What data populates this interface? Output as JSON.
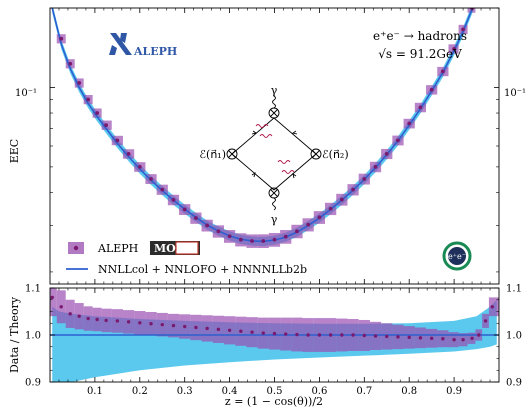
{
  "chart_data": [
    {
      "type": "line",
      "panel": "main",
      "ylabel": "EEC",
      "yscale": "log",
      "ylim_approx": [
        0.018,
        0.2
      ],
      "xlim": [
        0,
        1
      ],
      "ytick_label": "10⁻¹",
      "ytick_value": 0.1,
      "annotation_process": "e⁺e⁻ → hadrons",
      "annotation_energy": "√s = 91.2GeV",
      "logo_text": "ALEPH",
      "badge_text": "e⁺e⁻",
      "diagram": {
        "top_label": "γ",
        "bottom_label": "γ",
        "left_label": "ℰ(n⃗₁)",
        "right_label": "ℰ(n⃗₂)"
      },
      "legend": {
        "placement": "bottom-left",
        "data_label": "ALEPH",
        "data_badge": "MOD",
        "theory_label": "NNLLcol + NNLOFO + NNNNLLb2b"
      },
      "series": [
        {
          "name": "ALEPH MOD",
          "kind": "points-with-error-boxes",
          "x": [
            0.005,
            0.025,
            0.045,
            0.065,
            0.085,
            0.105,
            0.125,
            0.15,
            0.175,
            0.2,
            0.225,
            0.25,
            0.275,
            0.3,
            0.325,
            0.35,
            0.375,
            0.4,
            0.425,
            0.45,
            0.475,
            0.5,
            0.525,
            0.55,
            0.575,
            0.6,
            0.625,
            0.65,
            0.675,
            0.7,
            0.725,
            0.75,
            0.775,
            0.8,
            0.825,
            0.85,
            0.875,
            0.9,
            0.92,
            0.94,
            0.955,
            0.97,
            0.985
          ],
          "y": [
            0.21,
            0.153,
            0.123,
            0.104,
            0.09,
            0.08,
            0.072,
            0.063,
            0.056,
            0.05,
            0.045,
            0.041,
            0.0375,
            0.0345,
            0.032,
            0.03,
            0.0285,
            0.0273,
            0.0265,
            0.0262,
            0.0262,
            0.0265,
            0.0272,
            0.0285,
            0.0302,
            0.0322,
            0.0347,
            0.0376,
            0.041,
            0.045,
            0.05,
            0.056,
            0.063,
            0.073,
            0.084,
            0.098,
            0.115,
            0.14,
            0.166,
            0.2,
            0.236,
            0.29,
            0.37
          ]
        },
        {
          "name": "NNLLcol + NNLOFO + NNNNLLb2b",
          "kind": "central-line-with-uncertainty-band",
          "x": [
            0.005,
            0.025,
            0.045,
            0.065,
            0.085,
            0.105,
            0.125,
            0.15,
            0.175,
            0.2,
            0.225,
            0.25,
            0.275,
            0.3,
            0.325,
            0.35,
            0.375,
            0.4,
            0.425,
            0.45,
            0.475,
            0.5,
            0.525,
            0.55,
            0.575,
            0.6,
            0.625,
            0.65,
            0.675,
            0.7,
            0.725,
            0.75,
            0.775,
            0.8,
            0.825,
            0.85,
            0.875,
            0.9,
            0.92,
            0.94,
            0.955,
            0.97,
            0.985
          ],
          "y": [
            0.2,
            0.146,
            0.118,
            0.1,
            0.087,
            0.0775,
            0.0698,
            0.0614,
            0.0547,
            0.0491,
            0.0445,
            0.0407,
            0.0374,
            0.0346,
            0.0322,
            0.0301,
            0.0286,
            0.0274,
            0.0266,
            0.0262,
            0.0261,
            0.0264,
            0.0271,
            0.0283,
            0.03,
            0.032,
            0.0345,
            0.0374,
            0.0408,
            0.0448,
            0.0497,
            0.0556,
            0.0628,
            0.072,
            0.083,
            0.097,
            0.114,
            0.138,
            0.163,
            0.198,
            0.232,
            0.283,
            0.36
          ]
        }
      ]
    },
    {
      "type": "line",
      "panel": "ratio",
      "ylabel": "Data / Theory",
      "xlabel": "z = (1 − cos(θ))/2",
      "xlim": [
        0,
        1
      ],
      "ylim": [
        0.9,
        1.1
      ],
      "xticks": [
        0.1,
        0.2,
        0.3,
        0.4,
        0.5,
        0.6,
        0.7,
        0.8,
        0.9
      ],
      "xtick_labels": [
        "0.1",
        "0.2",
        "0.3",
        "0.4",
        "0.5",
        "0.6",
        "0.7",
        "0.8",
        "0.9"
      ],
      "yticks": [
        0.9,
        1.0,
        1.1
      ],
      "ytick_labels": [
        "0.9",
        "1.0",
        "1.1"
      ],
      "reference_line": 1.0,
      "theory_band": {
        "x": [
          0.005,
          0.02,
          0.05,
          0.1,
          0.2,
          0.3,
          0.4,
          0.5,
          0.6,
          0.7,
          0.8,
          0.9,
          0.95,
          0.98,
          0.995
        ],
        "upper": [
          1.06,
          1.05,
          1.045,
          1.04,
          1.034,
          1.03,
          1.027,
          1.025,
          1.024,
          1.024,
          1.025,
          1.03,
          1.04,
          1.06,
          1.075
        ],
        "lower": [
          0.9,
          0.9,
          0.9,
          0.91,
          0.925,
          0.935,
          0.942,
          0.948,
          0.952,
          0.956,
          0.96,
          0.965,
          0.97,
          0.975,
          0.98
        ]
      },
      "data_ratio": {
        "x": [
          0.005,
          0.025,
          0.045,
          0.065,
          0.085,
          0.105,
          0.125,
          0.15,
          0.175,
          0.2,
          0.225,
          0.25,
          0.275,
          0.3,
          0.325,
          0.35,
          0.375,
          0.4,
          0.425,
          0.45,
          0.475,
          0.5,
          0.525,
          0.55,
          0.575,
          0.6,
          0.625,
          0.65,
          0.675,
          0.7,
          0.725,
          0.75,
          0.775,
          0.8,
          0.825,
          0.85,
          0.875,
          0.9,
          0.92,
          0.94,
          0.955,
          0.97,
          0.985
        ],
        "y": [
          1.08,
          1.06,
          1.045,
          1.04,
          1.035,
          1.033,
          1.031,
          1.03,
          1.028,
          1.026,
          1.024,
          1.022,
          1.02,
          1.018,
          1.016,
          1.014,
          1.012,
          1.01,
          1.008,
          1.006,
          1.004,
          1.003,
          1.002,
          1.001,
          1.0,
          1.0,
          1.0,
          1.0,
          1.0,
          0.999,
          0.998,
          0.997,
          0.996,
          0.995,
          0.994,
          0.993,
          0.992,
          0.99,
          0.99,
          0.993,
          1.0,
          1.03,
          1.06
        ],
        "err": [
          0.04,
          0.035,
          0.03,
          0.028,
          0.026,
          0.025,
          0.025,
          0.025,
          0.025,
          0.025,
          0.025,
          0.025,
          0.025,
          0.026,
          0.027,
          0.028,
          0.029,
          0.03,
          0.031,
          0.032,
          0.033,
          0.034,
          0.035,
          0.036,
          0.036,
          0.036,
          0.036,
          0.035,
          0.034,
          0.033,
          0.03,
          0.028,
          0.026,
          0.024,
          0.022,
          0.02,
          0.018,
          0.016,
          0.014,
          0.012,
          0.012,
          0.015,
          0.02
        ]
      }
    }
  ],
  "colors": {
    "data_point": "#7a1a6e",
    "data_box": "#9a4eb0",
    "theory_line": "#2e5fd0",
    "theory_band": "#3ec0ea",
    "axis": "#000000",
    "logo_blue": "#2f57a6",
    "badge_green": "#1a8a55"
  }
}
